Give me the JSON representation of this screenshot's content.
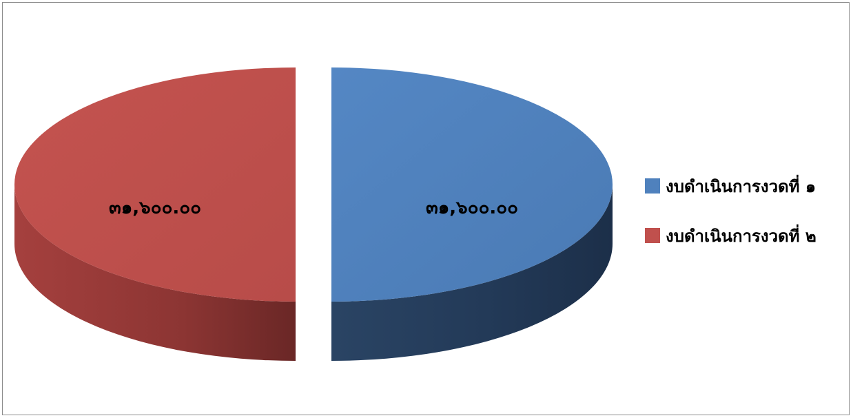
{
  "chart_data": {
    "type": "pie",
    "style": "3d-exploded",
    "categories": [
      "งบดำเนินการงวดที่ ๑",
      "งบดำเนินการงวดที่ ๒"
    ],
    "values": [
      31600,
      31600
    ],
    "data_labels": [
      "๓๑,๖๐๐.๐๐",
      "๓๑,๖๐๐.๐๐"
    ],
    "colors": [
      "#4f81bd",
      "#c0504d"
    ],
    "legend_position": "right",
    "title": ""
  }
}
